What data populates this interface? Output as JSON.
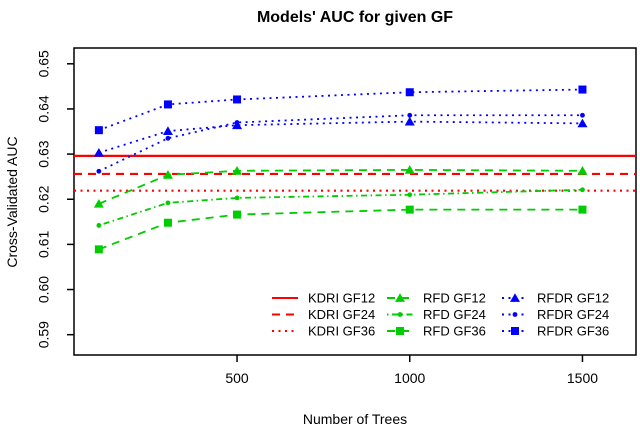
{
  "title": "Models' AUC for given GF",
  "axes": {
    "xlabel": "Number of Trees",
    "ylabel": "Cross-Validated AUC"
  },
  "colors": {
    "red": "#FF0000",
    "green": "#00CD00",
    "blue": "#0000FF",
    "axis": "#000000"
  },
  "chart_data": {
    "type": "line",
    "title": "Models' AUC for given GF",
    "xlabel": "Number of Trees",
    "ylabel": "Cross-Validated AUC",
    "x": [
      100,
      300,
      500,
      1000,
      1500
    ],
    "x_ticks": [
      "500",
      "1000",
      "1500"
    ],
    "y_ticks": [
      "0.59",
      "0.60",
      "0.61",
      "0.62",
      "0.63",
      "0.64",
      "0.65"
    ],
    "xlim": [
      28,
      1655
    ],
    "ylim": [
      0.5855,
      0.6535
    ],
    "grid": false,
    "legend_position": "inside-bottom-right",
    "series": [
      {
        "name": "KDRI GF12",
        "color": "red",
        "linestyle": "solid",
        "marker": "none",
        "type": "hline",
        "value": 0.6296
      },
      {
        "name": "KDRI GF24",
        "color": "red",
        "linestyle": "dashed",
        "marker": "none",
        "type": "hline",
        "value": 0.6256
      },
      {
        "name": "KDRI GF36",
        "color": "red",
        "linestyle": "dotted",
        "marker": "none",
        "type": "hline",
        "value": 0.6219
      },
      {
        "name": "RFD GF12",
        "color": "green",
        "linestyle": "dashed",
        "marker": "triangle",
        "type": "line",
        "values": [
          0.619,
          0.6254,
          0.6263,
          0.6265,
          0.6263
        ]
      },
      {
        "name": "RFD GF24",
        "color": "green",
        "linestyle": "dashdot",
        "marker": "dot",
        "type": "line",
        "values": [
          0.6142,
          0.6192,
          0.6203,
          0.621,
          0.6221
        ]
      },
      {
        "name": "RFD GF36",
        "color": "green",
        "linestyle": "dashed",
        "marker": "square",
        "type": "line",
        "values": [
          0.6089,
          0.6148,
          0.6166,
          0.6177,
          0.6177
        ]
      },
      {
        "name": "RFDR GF12",
        "color": "blue",
        "linestyle": "dotted",
        "marker": "triangle",
        "type": "line",
        "values": [
          0.6303,
          0.6351,
          0.6364,
          0.6372,
          0.6368
        ]
      },
      {
        "name": "RFDR GF24",
        "color": "blue",
        "linestyle": "dotted",
        "marker": "dot",
        "type": "line",
        "values": [
          0.6262,
          0.6335,
          0.637,
          0.6386,
          0.6386
        ]
      },
      {
        "name": "RFDR GF36",
        "color": "blue",
        "linestyle": "dotted",
        "marker": "square",
        "type": "line",
        "values": [
          0.6353,
          0.641,
          0.6421,
          0.6437,
          0.6443
        ]
      }
    ]
  }
}
